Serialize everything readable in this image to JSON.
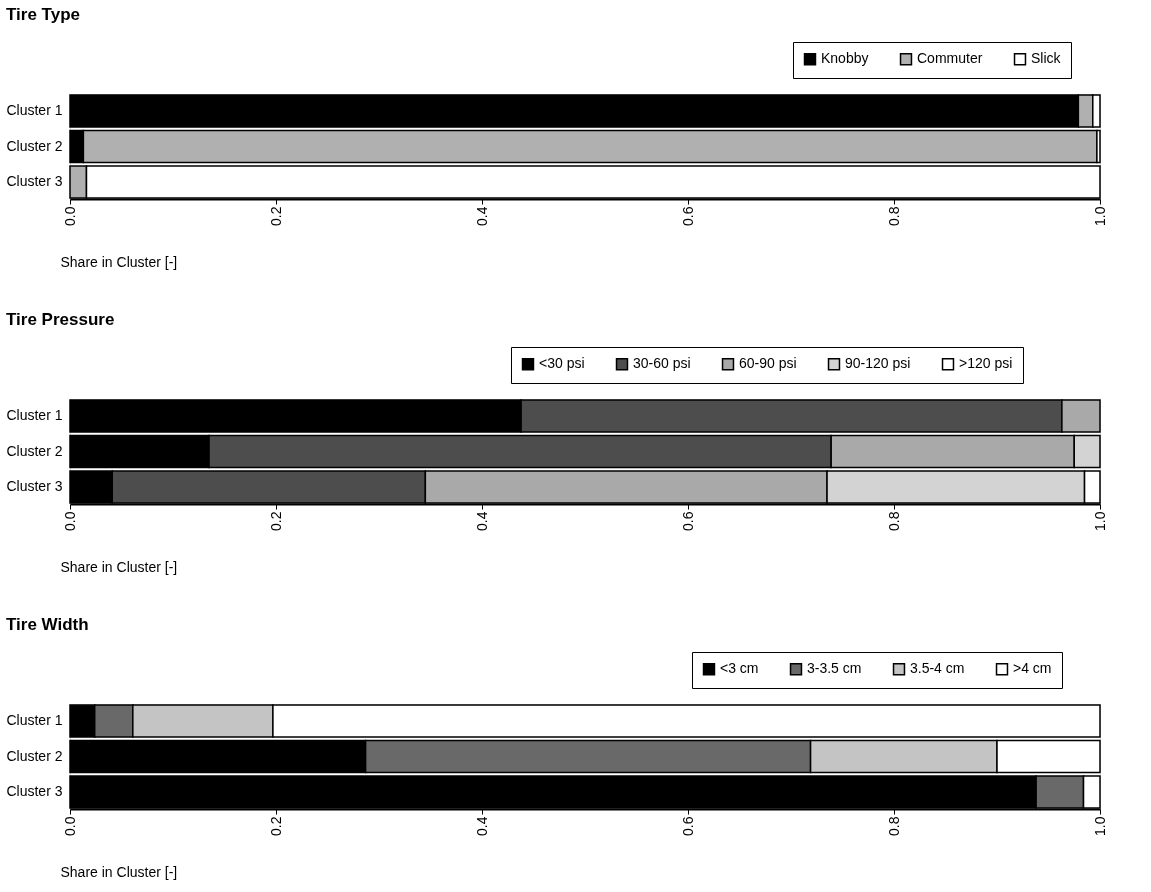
{
  "chart_data": [
    {
      "type": "bar",
      "orientation": "horizontal",
      "stacked": true,
      "title": "Tire Type",
      "xlabel": "Share in Cluster [-]",
      "categories": [
        "Cluster 1",
        "Cluster 2",
        "Cluster 3"
      ],
      "legend": "top right",
      "grid": false,
      "xlim": [
        0,
        1
      ],
      "xticks": [
        {
          "value": 0,
          "label": "0.0"
        },
        {
          "value": 0.2,
          "label": "0.2"
        },
        {
          "value": 0.4,
          "label": "0.4"
        },
        {
          "value": 0.6,
          "label": "0.6"
        },
        {
          "value": 0.8,
          "label": "0.8"
        },
        {
          "value": 1,
          "label": "1.0"
        }
      ],
      "series": [
        {
          "name": "Knobby",
          "color": "#000000",
          "values": [
            0.979,
            0.013,
            0
          ]
        },
        {
          "name": "Commuter",
          "color": "#b0b0b0",
          "values": [
            0.014,
            0.984,
            0.016
          ]
        },
        {
          "name": "Slick",
          "color": "#ffffff",
          "values": [
            0.007,
            0.003,
            0.984
          ]
        }
      ]
    },
    {
      "type": "bar",
      "orientation": "horizontal",
      "stacked": true,
      "title": "Tire Pressure",
      "xlabel": "Share in Cluster [-]",
      "categories": [
        "Cluster 1",
        "Cluster 2",
        "Cluster 3"
      ],
      "legend": "top right",
      "grid": false,
      "xlim": [
        0,
        1
      ],
      "xticks": [
        {
          "value": 0,
          "label": "0.0"
        },
        {
          "value": 0.2,
          "label": "0.2"
        },
        {
          "value": 0.4,
          "label": "0.4"
        },
        {
          "value": 0.6,
          "label": "0.6"
        },
        {
          "value": 0.8,
          "label": "0.8"
        },
        {
          "value": 1,
          "label": "1.0"
        }
      ],
      "series": [
        {
          "name": "<30 psi",
          "color": "#000000",
          "values": [
            0.438,
            0.135,
            0.041
          ]
        },
        {
          "name": "30-60 psi",
          "color": "#4d4d4d",
          "values": [
            0.525,
            0.604,
            0.304
          ]
        },
        {
          "name": "60-90 psi",
          "color": "#a9a9a9",
          "values": [
            0.037,
            0.236,
            0.39
          ]
        },
        {
          "name": "90-120 psi",
          "color": "#d3d3d3",
          "values": [
            0,
            0.025,
            0.25
          ]
        },
        {
          "name": ">120 psi",
          "color": "#ffffff",
          "values": [
            0,
            0,
            0.015
          ]
        }
      ]
    },
    {
      "type": "bar",
      "orientation": "horizontal",
      "stacked": true,
      "title": "Tire Width",
      "xlabel": "Share in Cluster [-]",
      "categories": [
        "Cluster 1",
        "Cluster 2",
        "Cluster 3"
      ],
      "legend": "top right",
      "grid": false,
      "xlim": [
        0,
        1
      ],
      "xticks": [
        {
          "value": 0,
          "label": "0.0"
        },
        {
          "value": 0.2,
          "label": "0.2"
        },
        {
          "value": 0.4,
          "label": "0.4"
        },
        {
          "value": 0.6,
          "label": "0.6"
        },
        {
          "value": 0.8,
          "label": "0.8"
        },
        {
          "value": 1,
          "label": "1.0"
        }
      ],
      "series": [
        {
          "name": "<3 cm",
          "color": "#000000",
          "values": [
            0.024,
            0.287,
            0.938
          ]
        },
        {
          "name": "3-3.5 cm",
          "color": "#696969",
          "values": [
            0.037,
            0.432,
            0.046
          ]
        },
        {
          "name": "3.5-4 cm",
          "color": "#c4c4c4",
          "values": [
            0.136,
            0.181,
            0
          ]
        },
        {
          "name": ">4 cm",
          "color": "#ffffff",
          "values": [
            0.803,
            0.1,
            0.016
          ]
        }
      ]
    }
  ]
}
